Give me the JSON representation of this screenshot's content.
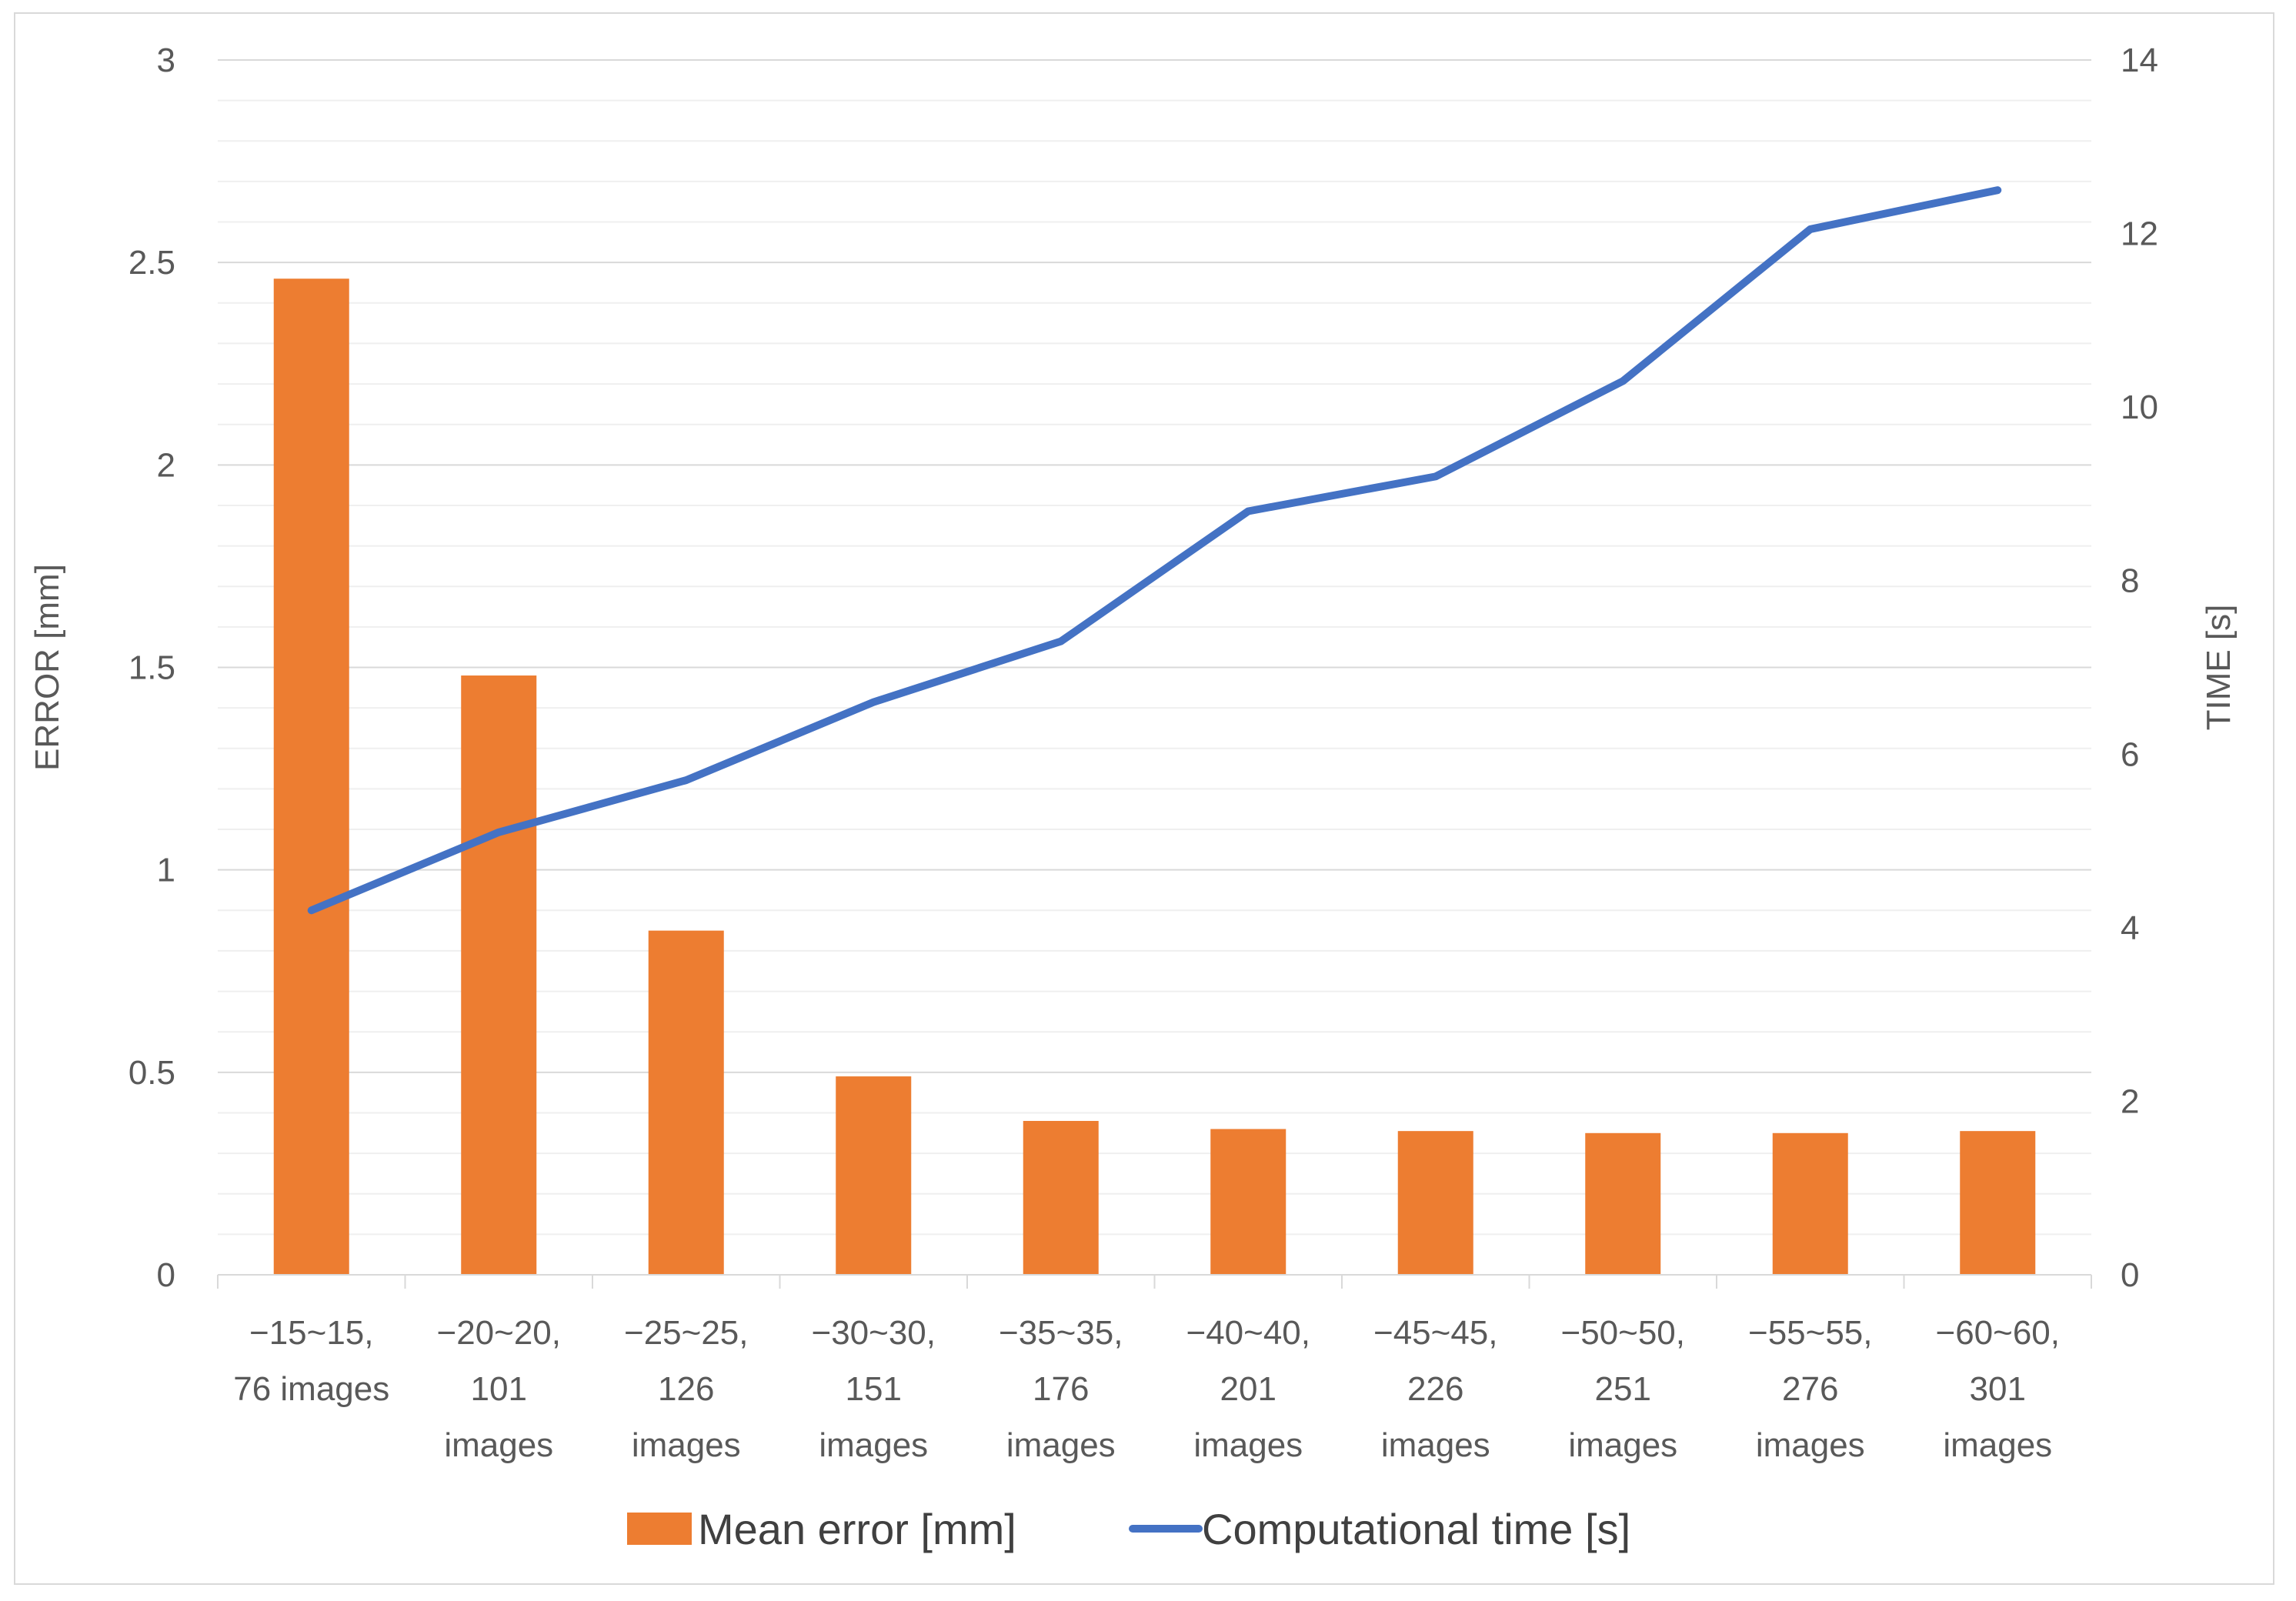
{
  "chart_data": {
    "type": "bar",
    "categories": [
      [
        "−15~15,",
        "76 images"
      ],
      [
        "−20~20,",
        "101",
        "images"
      ],
      [
        "−25~25,",
        "126",
        "images"
      ],
      [
        "−30~30,",
        "151",
        "images"
      ],
      [
        "−35~35,",
        "176",
        "images"
      ],
      [
        "−40~40,",
        "201",
        "images"
      ],
      [
        "−45~45,",
        "226",
        "images"
      ],
      [
        "−50~50,",
        "251",
        "images"
      ],
      [
        "−55~55,",
        "276",
        "images"
      ],
      [
        "−60~60,",
        "301",
        "images"
      ]
    ],
    "series": [
      {
        "name": "Mean error [mm]",
        "type": "bar",
        "axis": "left",
        "color": "#ed7d31",
        "values": [
          2.46,
          1.48,
          0.85,
          0.49,
          0.38,
          0.36,
          0.355,
          0.35,
          0.35,
          0.355
        ]
      },
      {
        "name": "Computational time [s]",
        "type": "line",
        "axis": "right",
        "color": "#4472c4",
        "values": [
          4.2,
          5.1,
          5.7,
          6.6,
          7.3,
          8.8,
          9.2,
          10.3,
          12.05,
          12.5
        ]
      }
    ],
    "ylabel": "ERROR [mm]",
    "y2label": "TIME [s]",
    "ylim": [
      0,
      3
    ],
    "yticks": [
      "0",
      "0.5",
      "1",
      "1.5",
      "2",
      "2.5",
      "3"
    ],
    "y2lim": [
      0,
      14
    ],
    "y2ticks": [
      "0",
      "2",
      "4",
      "6",
      "8",
      "10",
      "12",
      "14"
    ],
    "grid": true,
    "legend_position": "bottom"
  }
}
